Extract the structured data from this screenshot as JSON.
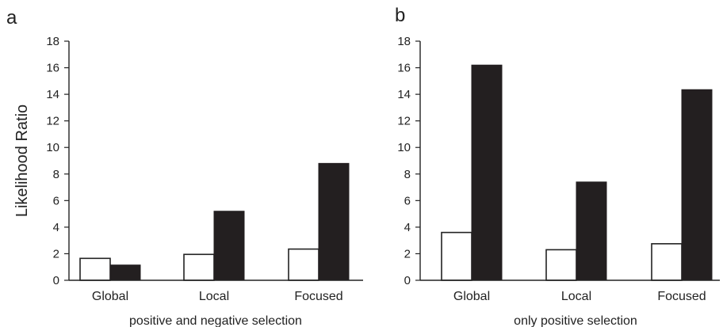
{
  "figure": {
    "ylabel": "Likelihood Ratio"
  },
  "chart_data": [
    {
      "type": "bar",
      "panel_label": "a",
      "categories": [
        "Global",
        "Local",
        "Focused"
      ],
      "xlabel": "positive and negative selection",
      "ylabel": "Likelihood Ratio",
      "ylim": [
        0,
        18
      ],
      "yticks": [
        0,
        2,
        4,
        6,
        8,
        10,
        12,
        14,
        16,
        18
      ],
      "grid": false,
      "series": [
        {
          "style": "open",
          "color": "#ffffff",
          "values": [
            1.65,
            1.95,
            2.35
          ]
        },
        {
          "style": "filled",
          "color": "#231f20",
          "values": [
            1.15,
            5.2,
            8.8
          ]
        }
      ]
    },
    {
      "type": "bar",
      "panel_label": "b",
      "categories": [
        "Global",
        "Local",
        "Focused"
      ],
      "xlabel": "only positive selection",
      "ylabel": "",
      "ylim": [
        0,
        18
      ],
      "yticks": [
        0,
        2,
        4,
        6,
        8,
        10,
        12,
        14,
        16,
        18
      ],
      "grid": false,
      "series": [
        {
          "style": "open",
          "color": "#ffffff",
          "values": [
            3.6,
            2.3,
            2.75
          ]
        },
        {
          "style": "filled",
          "color": "#231f20",
          "values": [
            16.2,
            7.4,
            14.35
          ]
        }
      ]
    }
  ]
}
